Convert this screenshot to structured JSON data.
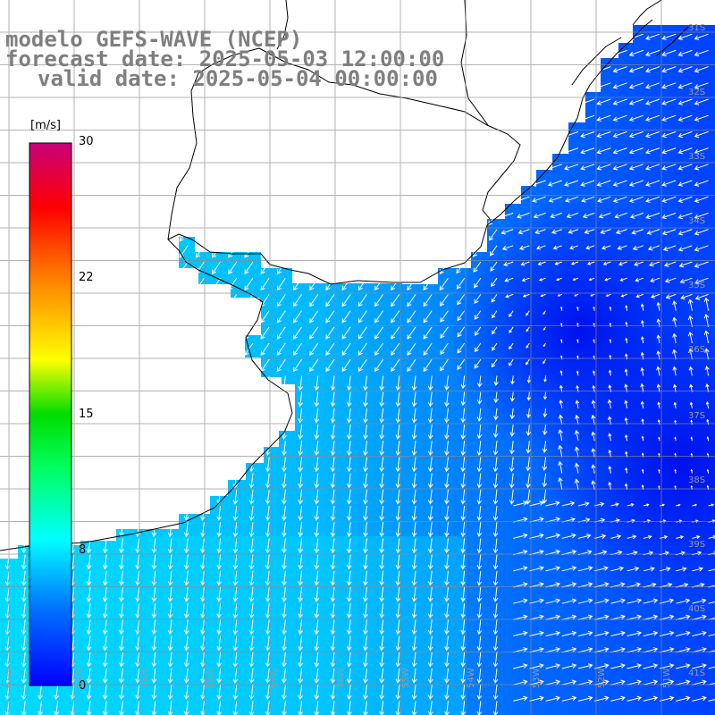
{
  "title": {
    "line1": "modelo GEFS-WAVE (NCEP)",
    "line2": "forecast date: 2025-05-03 12:00:00",
    "line3": "valid date: 2025-05-04 00:00:00"
  },
  "colorbar": {
    "unit": "[m/s]",
    "ticks": [
      {
        "value": 30,
        "label": "30"
      },
      {
        "value": 22,
        "label": "22"
      },
      {
        "value": 15,
        "label": "15"
      },
      {
        "value": 8,
        "label": "8"
      },
      {
        "value": 0,
        "label": "0"
      }
    ],
    "colors": [
      "#0000ff",
      "#0080ff",
      "#00ffff",
      "#00ff00",
      "#ffff00",
      "#ff8000",
      "#ff0000",
      "#c00080"
    ]
  },
  "grid_labels": {
    "lat": [
      "31S",
      "32S",
      "33S",
      "34S",
      "35S",
      "36S",
      "37S",
      "38S",
      "39S",
      "40S",
      "41S"
    ],
    "lon": [
      "61W",
      "60W",
      "59W",
      "58W",
      "57W",
      "56W",
      "55W",
      "54W",
      "53W",
      "52W",
      "51W"
    ]
  }
}
